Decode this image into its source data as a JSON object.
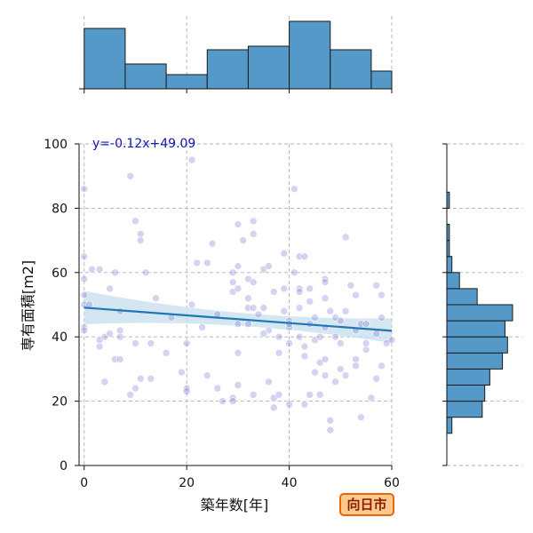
{
  "chart_data": {
    "type": "scatter",
    "xlabel": "築年数[年]",
    "ylabel": "専有面積[m2]",
    "xlim": [
      -1,
      60
    ],
    "ylim": [
      0,
      100
    ],
    "xticks": [
      0,
      20,
      40,
      60
    ],
    "yticks": [
      0,
      20,
      40,
      60,
      80,
      100
    ],
    "grid": true,
    "regression": {
      "label": "y=-0.12x+49.09",
      "slope": -0.12,
      "intercept": 49.09
    },
    "colors": {
      "points": "#6f6fcf",
      "line": "#1f77b4",
      "band": "#c6ddee",
      "hist": "#5599c8",
      "equation": "#1515b0"
    },
    "points": [
      [
        0,
        86
      ],
      [
        0,
        65
      ],
      [
        0,
        58
      ],
      [
        0,
        53
      ],
      [
        0,
        50
      ],
      [
        0,
        43
      ],
      [
        0,
        42
      ],
      [
        1.5,
        61
      ],
      [
        1,
        50
      ],
      [
        3,
        39
      ],
      [
        3,
        37
      ],
      [
        3,
        61
      ],
      [
        4,
        26
      ],
      [
        4,
        40
      ],
      [
        5,
        41
      ],
      [
        5,
        55
      ],
      [
        6,
        33
      ],
      [
        6,
        60
      ],
      [
        7,
        48
      ],
      [
        7,
        33
      ],
      [
        7,
        42
      ],
      [
        7,
        40
      ],
      [
        9,
        90
      ],
      [
        9,
        22
      ],
      [
        10,
        76
      ],
      [
        10,
        38
      ],
      [
        10,
        24
      ],
      [
        11,
        27
      ],
      [
        11,
        72
      ],
      [
        11,
        70
      ],
      [
        12,
        60
      ],
      [
        13,
        27
      ],
      [
        13,
        38
      ],
      [
        16,
        35
      ],
      [
        19,
        29
      ],
      [
        20,
        38
      ],
      [
        20,
        24
      ],
      [
        20,
        23
      ],
      [
        21,
        95
      ],
      [
        22,
        63
      ],
      [
        24,
        63
      ],
      [
        24,
        28
      ],
      [
        25,
        69
      ],
      [
        26,
        24
      ],
      [
        27,
        20
      ],
      [
        29,
        60
      ],
      [
        29,
        57
      ],
      [
        29,
        54
      ],
      [
        29,
        21
      ],
      [
        29,
        20
      ],
      [
        30,
        75
      ],
      [
        30,
        62
      ],
      [
        30,
        55
      ],
      [
        30,
        35
      ],
      [
        30,
        25
      ],
      [
        31,
        70
      ],
      [
        32,
        58
      ],
      [
        32,
        52
      ],
      [
        32,
        44
      ],
      [
        32,
        49
      ],
      [
        33,
        76
      ],
      [
        33,
        72
      ],
      [
        33,
        57
      ],
      [
        33,
        49
      ],
      [
        33,
        22
      ],
      [
        35,
        49
      ],
      [
        35,
        61
      ],
      [
        36,
        62
      ],
      [
        36,
        26
      ],
      [
        36,
        42
      ],
      [
        37,
        21
      ],
      [
        37,
        18
      ],
      [
        38,
        40
      ],
      [
        38,
        22
      ],
      [
        39,
        66
      ],
      [
        39,
        55
      ],
      [
        39,
        48
      ],
      [
        40,
        45
      ],
      [
        40,
        43
      ],
      [
        40,
        38
      ],
      [
        40,
        19
      ],
      [
        41,
        86
      ],
      [
        41,
        60
      ],
      [
        42,
        65
      ],
      [
        42,
        55
      ],
      [
        42,
        54
      ],
      [
        42,
        49
      ],
      [
        43,
        65
      ],
      [
        43,
        37
      ],
      [
        43,
        34
      ],
      [
        43,
        19
      ],
      [
        44,
        55
      ],
      [
        44,
        51
      ],
      [
        44,
        44
      ],
      [
        44,
        22
      ],
      [
        45,
        39
      ],
      [
        45,
        29
      ],
      [
        46,
        40
      ],
      [
        46,
        32
      ],
      [
        46,
        22
      ],
      [
        47,
        58
      ],
      [
        47,
        57
      ],
      [
        47,
        52
      ],
      [
        47,
        43
      ],
      [
        47,
        33
      ],
      [
        47,
        28
      ],
      [
        48,
        14
      ],
      [
        48,
        11
      ],
      [
        49,
        46
      ],
      [
        49,
        40
      ],
      [
        49,
        26
      ],
      [
        50,
        45
      ],
      [
        50,
        30
      ],
      [
        51,
        48
      ],
      [
        51,
        71
      ],
      [
        51,
        28
      ],
      [
        52,
        56
      ],
      [
        53,
        53
      ],
      [
        53,
        42
      ],
      [
        53,
        33
      ],
      [
        53,
        31
      ],
      [
        54,
        44
      ],
      [
        54,
        15
      ],
      [
        55,
        44
      ],
      [
        55,
        36
      ],
      [
        56,
        21
      ],
      [
        57,
        56
      ],
      [
        57,
        27
      ],
      [
        58,
        53
      ],
      [
        58,
        31
      ],
      [
        59,
        38
      ],
      [
        60,
        39
      ],
      [
        40,
        44
      ],
      [
        42,
        40
      ],
      [
        30,
        44
      ],
      [
        14,
        52
      ],
      [
        17,
        46
      ],
      [
        21,
        50
      ],
      [
        23,
        43
      ],
      [
        26,
        47
      ],
      [
        34,
        47
      ],
      [
        35,
        41
      ],
      [
        37,
        54
      ],
      [
        38,
        35
      ],
      [
        45,
        46
      ],
      [
        48,
        48
      ],
      [
        50,
        38
      ],
      [
        55,
        38
      ],
      [
        57,
        41
      ],
      [
        58,
        46
      ]
    ],
    "x_histogram": {
      "bin_edges": [
        0,
        8,
        16,
        24,
        32,
        40,
        48,
        56,
        60
      ],
      "counts": [
        17,
        7,
        4,
        11,
        12,
        19,
        11,
        5
      ]
    },
    "y_histogram": {
      "bin_edges": [
        10,
        15,
        20,
        25,
        30,
        35,
        40,
        45,
        50,
        55,
        60,
        65,
        70,
        75,
        80,
        85,
        90,
        95,
        100
      ],
      "counts": [
        2,
        14,
        15,
        17,
        22,
        24,
        23,
        26,
        12,
        5,
        2,
        1,
        1,
        0,
        1,
        0,
        0,
        0
      ]
    }
  },
  "badge": {
    "label": "向日市",
    "background": "#ffc98e",
    "border": "#e8650a",
    "text_color": "#8a1d00"
  }
}
